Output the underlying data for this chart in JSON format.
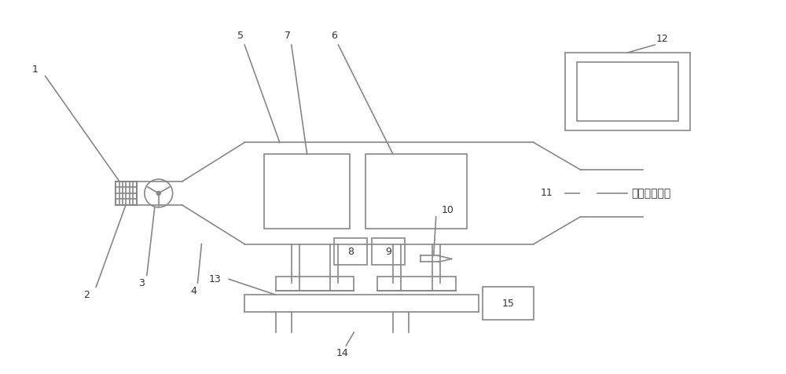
{
  "bg_color": "#ffffff",
  "line_color": "#888888",
  "line_width": 1.2,
  "fig_width": 10.0,
  "fig_height": 4.76,
  "dpi": 100,
  "label_color": "#333333",
  "chinese_text": "净化后的空气"
}
